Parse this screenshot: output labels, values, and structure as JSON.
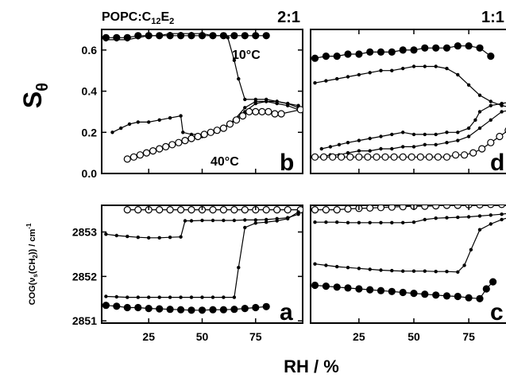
{
  "figure": {
    "header_label_main": "POPC:C",
    "header_label_sub1": "12",
    "header_label_mid": "E",
    "header_label_sub2": "2",
    "ratio_left": "2:1",
    "ratio_right": "1:1",
    "y_label_top_main": "S",
    "y_label_top_sub": "θ",
    "y_label_bottom": "COG(ν",
    "y_label_bottom_sub": "s",
    "y_label_bottom_rest": "(CH",
    "y_label_bottom_sub2": "2",
    "y_label_bottom_end": ")) / cm",
    "y_label_bottom_sup": "-1",
    "x_label": "RH / %",
    "annotation_10c": "10°C",
    "annotation_40c": "40°C"
  },
  "chart_data": [
    {
      "type": "line",
      "panel": "b",
      "xlim": [
        3,
        97
      ],
      "ylim": [
        0.0,
        0.7
      ],
      "y_ticks": [
        0.0,
        0.2,
        0.4,
        0.6
      ],
      "y_tick_labels": [
        "0.0",
        "0.2",
        "0.4",
        "0.6"
      ],
      "x_ticks": [
        25,
        50,
        75
      ],
      "series": [
        {
          "marker": "large-filled",
          "x": [
            5,
            10,
            15,
            20,
            25,
            30,
            35,
            40,
            45,
            50,
            55,
            60,
            65,
            70,
            75,
            80
          ],
          "y": [
            0.66,
            0.66,
            0.66,
            0.67,
            0.67,
            0.67,
            0.67,
            0.67,
            0.67,
            0.67,
            0.67,
            0.67,
            0.67,
            0.67,
            0.67,
            0.67
          ]
        },
        {
          "marker": "small-filled",
          "x": [
            5,
            10,
            15,
            20,
            25,
            30,
            35,
            40,
            45,
            50,
            55,
            60,
            62,
            65,
            67,
            70,
            75,
            80,
            85,
            90,
            95
          ],
          "y": [
            0.65,
            0.65,
            0.65,
            0.66,
            0.67,
            0.67,
            0.68,
            0.68,
            0.68,
            0.68,
            0.67,
            0.67,
            0.66,
            0.55,
            0.46,
            0.36,
            0.36,
            0.36,
            0.35,
            0.34,
            0.33
          ]
        },
        {
          "marker": "small-filled",
          "x": [
            8,
            12,
            16,
            20,
            25,
            30,
            35,
            40,
            41,
            45,
            50,
            55,
            60,
            65,
            70,
            75,
            80,
            85,
            90,
            95
          ],
          "y": [
            0.2,
            0.22,
            0.24,
            0.25,
            0.25,
            0.26,
            0.27,
            0.28,
            0.2,
            0.19,
            0.19,
            0.2,
            0.22,
            0.26,
            0.32,
            0.35,
            0.35,
            0.35,
            0.34,
            0.32
          ]
        },
        {
          "marker": "small-filled",
          "x": [
            45,
            50,
            55,
            60,
            65,
            70,
            75,
            80,
            85,
            90,
            95
          ],
          "y": [
            0.17,
            0.18,
            0.2,
            0.22,
            0.26,
            0.3,
            0.34,
            0.35,
            0.34,
            0.33,
            0.31
          ]
        },
        {
          "marker": "open",
          "x": [
            15,
            18,
            21,
            24,
            27,
            30,
            33,
            36,
            39,
            42,
            45,
            48,
            51,
            54,
            57,
            60,
            63,
            66,
            69,
            72,
            75,
            78,
            81,
            84,
            87,
            96
          ],
          "y": [
            0.07,
            0.08,
            0.09,
            0.1,
            0.11,
            0.12,
            0.13,
            0.14,
            0.15,
            0.16,
            0.17,
            0.18,
            0.19,
            0.2,
            0.21,
            0.22,
            0.24,
            0.26,
            0.28,
            0.3,
            0.3,
            0.3,
            0.3,
            0.29,
            0.29,
            0.31
          ]
        }
      ]
    },
    {
      "type": "line",
      "panel": "d",
      "xlim": [
        3,
        97
      ],
      "ylim": [
        0.0,
        0.7
      ],
      "x_ticks": [
        25,
        50,
        75
      ],
      "series": [
        {
          "marker": "large-filled",
          "x": [
            5,
            10,
            15,
            20,
            25,
            30,
            35,
            40,
            45,
            50,
            55,
            60,
            65,
            70,
            75,
            80,
            85
          ],
          "y": [
            0.56,
            0.57,
            0.57,
            0.58,
            0.58,
            0.59,
            0.59,
            0.59,
            0.6,
            0.6,
            0.61,
            0.61,
            0.61,
            0.62,
            0.62,
            0.61,
            0.57
          ]
        },
        {
          "marker": "small-filled",
          "x": [
            5,
            10,
            15,
            20,
            25,
            30,
            35,
            40,
            45,
            50,
            55,
            60,
            65,
            70,
            75,
            80,
            85,
            90,
            95
          ],
          "y": [
            0.44,
            0.45,
            0.46,
            0.47,
            0.48,
            0.49,
            0.5,
            0.5,
            0.51,
            0.52,
            0.52,
            0.52,
            0.51,
            0.48,
            0.43,
            0.38,
            0.35,
            0.33,
            0.32
          ]
        },
        {
          "marker": "small-filled",
          "x": [
            8,
            12,
            16,
            20,
            25,
            30,
            35,
            40,
            45,
            50,
            55,
            60,
            65,
            70,
            75,
            78,
            80,
            85,
            90,
            95
          ],
          "y": [
            0.12,
            0.13,
            0.14,
            0.15,
            0.16,
            0.17,
            0.18,
            0.19,
            0.2,
            0.19,
            0.19,
            0.19,
            0.2,
            0.2,
            0.22,
            0.26,
            0.3,
            0.33,
            0.34,
            0.35
          ]
        },
        {
          "marker": "small-filled",
          "x": [
            8,
            12,
            16,
            20,
            25,
            30,
            35,
            40,
            45,
            50,
            55,
            60,
            65,
            70,
            75,
            80,
            85,
            90,
            95
          ],
          "y": [
            0.08,
            0.09,
            0.09,
            0.1,
            0.11,
            0.11,
            0.12,
            0.12,
            0.13,
            0.13,
            0.14,
            0.14,
            0.15,
            0.16,
            0.18,
            0.22,
            0.26,
            0.3,
            0.31
          ]
        },
        {
          "marker": "open",
          "x": [
            5,
            9,
            13,
            17,
            21,
            25,
            29,
            33,
            37,
            41,
            45,
            49,
            53,
            57,
            61,
            65,
            69,
            73,
            77,
            81,
            85,
            89,
            93,
            97
          ],
          "y": [
            0.08,
            0.08,
            0.08,
            0.08,
            0.08,
            0.08,
            0.08,
            0.08,
            0.08,
            0.08,
            0.08,
            0.08,
            0.08,
            0.08,
            0.08,
            0.08,
            0.09,
            0.09,
            0.1,
            0.12,
            0.15,
            0.18,
            0.21,
            0.24
          ]
        }
      ]
    },
    {
      "type": "line",
      "panel": "a",
      "xlim": [
        3,
        97
      ],
      "ylim": [
        2850.95,
        2853.6
      ],
      "y_ticks": [
        2851,
        2852,
        2853
      ],
      "y_tick_labels": [
        "2851",
        "2852",
        "2853"
      ],
      "x_ticks": [
        25,
        50,
        75
      ],
      "x_tick_labels": [
        "25",
        "50",
        "75"
      ],
      "series": [
        {
          "marker": "open",
          "x": [
            15,
            20,
            25,
            30,
            35,
            40,
            45,
            50,
            55,
            60,
            65,
            70,
            75,
            80,
            85,
            90,
            96
          ],
          "y": [
            2853.5,
            2853.5,
            2853.5,
            2853.5,
            2853.5,
            2853.5,
            2853.5,
            2853.5,
            2853.5,
            2853.5,
            2853.5,
            2853.5,
            2853.5,
            2853.5,
            2853.5,
            2853.5,
            2853.5
          ]
        },
        {
          "marker": "small-filled",
          "x": [
            5,
            10,
            15,
            20,
            25,
            30,
            35,
            40,
            42,
            45,
            50,
            55,
            60,
            65,
            70,
            75,
            80,
            85,
            90,
            95
          ],
          "y": [
            2852.95,
            2852.92,
            2852.9,
            2852.88,
            2852.87,
            2852.87,
            2852.88,
            2852.89,
            2853.25,
            2853.25,
            2853.26,
            2853.26,
            2853.26,
            2853.26,
            2853.27,
            2853.27,
            2853.28,
            2853.3,
            2853.32,
            2853.4
          ]
        },
        {
          "marker": "small-filled",
          "x": [
            5,
            10,
            15,
            20,
            25,
            30,
            35,
            40,
            45,
            50,
            55,
            60,
            65,
            67,
            70,
            75,
            80,
            85,
            90,
            95
          ],
          "y": [
            2851.55,
            2851.54,
            2851.53,
            2851.53,
            2851.53,
            2851.53,
            2851.53,
            2851.53,
            2851.53,
            2851.53,
            2851.53,
            2851.53,
            2851.53,
            2852.2,
            2853.1,
            2853.2,
            2853.22,
            2853.25,
            2853.3,
            2853.45
          ]
        },
        {
          "marker": "large-filled",
          "x": [
            5,
            10,
            15,
            20,
            25,
            30,
            35,
            40,
            45,
            50,
            55,
            60,
            65,
            70,
            75,
            80
          ],
          "y": [
            2851.35,
            2851.33,
            2851.3,
            2851.3,
            2851.28,
            2851.27,
            2851.26,
            2851.25,
            2851.24,
            2851.24,
            2851.25,
            2851.25,
            2851.26,
            2851.28,
            2851.3,
            2851.32
          ]
        }
      ]
    },
    {
      "type": "line",
      "panel": "c",
      "xlim": [
        3,
        97
      ],
      "ylim": [
        2850.95,
        2853.6
      ],
      "x_ticks": [
        25,
        50,
        75
      ],
      "x_tick_labels": [
        "25",
        "50",
        "75"
      ],
      "series": [
        {
          "marker": "open",
          "x": [
            5,
            10,
            15,
            20,
            25,
            30,
            35,
            40,
            45,
            50,
            55,
            60,
            65,
            70,
            75,
            80,
            85,
            90,
            95
          ],
          "y": [
            2853.5,
            2853.5,
            2853.5,
            2853.52,
            2853.53,
            2853.54,
            2853.55,
            2853.56,
            2853.57,
            2853.58,
            2853.58,
            2853.59,
            2853.6,
            2853.6,
            2853.61,
            2853.61,
            2853.62,
            2853.62,
            2853.63
          ]
        },
        {
          "marker": "small-filled",
          "x": [
            5,
            10,
            15,
            20,
            25,
            30,
            35,
            40,
            45,
            50,
            55,
            60,
            65,
            70,
            75,
            80,
            85,
            90,
            95
          ],
          "y": [
            2853.22,
            2853.22,
            2853.22,
            2853.21,
            2853.21,
            2853.21,
            2853.21,
            2853.21,
            2853.21,
            2853.22,
            2853.28,
            2853.31,
            2853.32,
            2853.33,
            2853.34,
            2853.36,
            2853.38,
            2853.4,
            2853.43
          ]
        },
        {
          "marker": "small-filled",
          "x": [
            5,
            10,
            15,
            20,
            25,
            30,
            35,
            40,
            45,
            50,
            55,
            60,
            65,
            70,
            73,
            76,
            80,
            85,
            90,
            95
          ],
          "y": [
            2852.28,
            2852.25,
            2852.22,
            2852.2,
            2852.18,
            2852.16,
            2852.14,
            2852.13,
            2852.12,
            2852.12,
            2852.12,
            2852.11,
            2852.11,
            2852.1,
            2852.25,
            2852.6,
            2853.05,
            2853.18,
            2853.28,
            2853.35
          ]
        },
        {
          "marker": "large-filled",
          "x": [
            5,
            10,
            15,
            20,
            25,
            30,
            35,
            40,
            45,
            50,
            55,
            60,
            65,
            70,
            75,
            80,
            83,
            86
          ],
          "y": [
            2851.8,
            2851.78,
            2851.76,
            2851.74,
            2851.72,
            2851.7,
            2851.68,
            2851.66,
            2851.64,
            2851.62,
            2851.6,
            2851.58,
            2851.56,
            2851.55,
            2851.52,
            2851.5,
            2851.72,
            2851.88
          ]
        }
      ]
    }
  ]
}
